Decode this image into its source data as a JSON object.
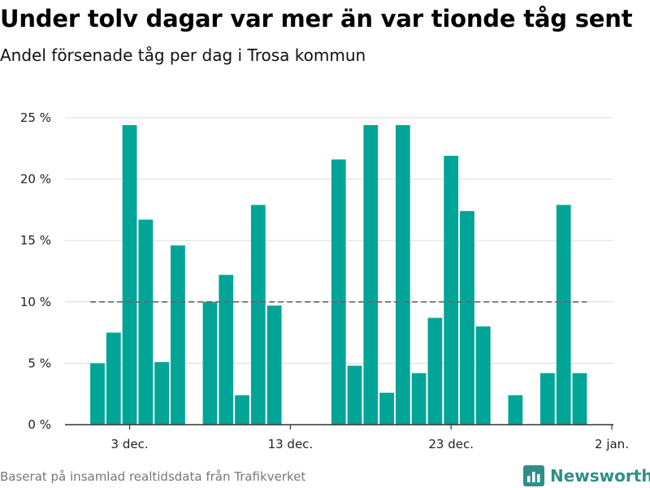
{
  "title": "Under tolv dagar var mer än var tionde tåg sent",
  "subtitle": "Andel försenade tåg per dag i Trosa kommun",
  "source": "Baserat på insamlad realtidsdata från Trafikverket",
  "brand": {
    "name": "Newsworthy",
    "icon": "newsworthy-logo-icon",
    "color": "#2f8f88"
  },
  "colors": {
    "bar": "#00a598",
    "reference_line": "#666666",
    "grid": "#dddddd",
    "axis": "#333333"
  },
  "chart_data": {
    "type": "bar",
    "x": [
      "2017-12-01",
      "2017-12-02",
      "2017-12-03",
      "2017-12-04",
      "2017-12-05",
      "2017-12-06",
      "2017-12-07",
      "2017-12-08",
      "2017-12-09",
      "2017-12-10",
      "2017-12-11",
      "2017-12-12",
      "2017-12-13",
      "2017-12-14",
      "2017-12-15",
      "2017-12-16",
      "2017-12-17",
      "2017-12-18",
      "2017-12-19",
      "2017-12-20",
      "2017-12-21",
      "2017-12-22",
      "2017-12-23",
      "2017-12-24",
      "2017-12-25",
      "2017-12-26",
      "2017-12-27",
      "2017-12-28",
      "2017-12-29",
      "2017-12-30",
      "2017-12-31"
    ],
    "values": [
      5.0,
      7.5,
      24.4,
      16.7,
      5.1,
      14.6,
      null,
      10.0,
      12.2,
      2.4,
      17.9,
      9.7,
      null,
      null,
      null,
      21.6,
      4.8,
      24.4,
      2.6,
      24.4,
      4.2,
      8.7,
      21.9,
      17.4,
      8.0,
      null,
      2.4,
      null,
      4.2,
      17.9,
      4.2
    ],
    "ylim": [
      0,
      25
    ],
    "yticks": [
      0,
      5,
      10,
      15,
      20,
      25
    ],
    "ytick_labels": [
      "0 %",
      "5 %",
      "10 %",
      "15 %",
      "20 %",
      "25 %"
    ],
    "xticks": [
      {
        "date": "2017-12-03",
        "label": "3 dec."
      },
      {
        "date": "2017-12-13",
        "label": "13 dec."
      },
      {
        "date": "2017-12-23",
        "label": "23 dec."
      },
      {
        "date": "2018-01-02",
        "label": "2 jan."
      }
    ],
    "reference_line": {
      "value": 10,
      "from": "2017-12-01",
      "to": "2017-12-31",
      "style": "dashed"
    },
    "grid": true,
    "legend": false,
    "xlabel": "",
    "ylabel": ""
  }
}
